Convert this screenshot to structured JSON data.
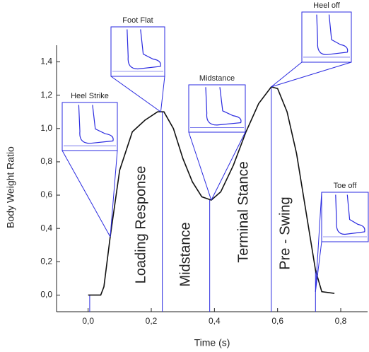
{
  "chart_data": {
    "type": "line",
    "x_label": "Time (s)",
    "y_label": "Body Weight Ratio",
    "xlim": [
      -0.1,
      0.885
    ],
    "ylim": [
      -0.1,
      1.5
    ],
    "xticks": [
      {
        "value": 0,
        "label": "0,0"
      },
      {
        "value": 0.2,
        "label": "0,2"
      },
      {
        "value": 0.4,
        "label": "0,4"
      },
      {
        "value": 0.6,
        "label": "0,6"
      },
      {
        "value": 0.8,
        "label": "0,8"
      }
    ],
    "yticks": [
      {
        "value": 0,
        "label": "0,0"
      },
      {
        "value": 0.2,
        "label": "0,2"
      },
      {
        "value": 0.4,
        "label": "0,4"
      },
      {
        "value": 0.6,
        "label": "0,6"
      },
      {
        "value": 0.8,
        "label": "0,8"
      },
      {
        "value": 1.0,
        "label": "1,0"
      },
      {
        "value": 1.2,
        "label": "1,2"
      },
      {
        "value": 1.4,
        "label": "1,4"
      }
    ],
    "x": [
      0.0,
      0.04,
      0.05,
      0.07,
      0.1,
      0.14,
      0.18,
      0.22,
      0.24,
      0.27,
      0.3,
      0.33,
      0.36,
      0.39,
      0.42,
      0.46,
      0.5,
      0.54,
      0.58,
      0.6,
      0.63,
      0.66,
      0.69,
      0.72,
      0.74,
      0.78
    ],
    "series": [
      {
        "color": "#111111",
        "values": [
          0.0,
          0.0,
          0.05,
          0.35,
          0.75,
          0.98,
          1.05,
          1.1,
          1.1,
          1.0,
          0.82,
          0.68,
          0.59,
          0.57,
          0.62,
          0.78,
          0.98,
          1.15,
          1.25,
          1.24,
          1.1,
          0.85,
          0.5,
          0.15,
          0.02,
          0.01
        ]
      }
    ],
    "phase_boundaries": [
      0.005,
      0.235,
      0.385,
      0.58,
      0.72
    ],
    "phases": [
      "Loading Response",
      "Midstance",
      "Terminal Stance",
      "Pre - Swing"
    ],
    "annotations": [
      {
        "text": "Heel Strike",
        "x": 0.07,
        "y": 0.35
      },
      {
        "text": "Foot Flat",
        "x": 0.23,
        "y": 1.1
      },
      {
        "text": "Midstance",
        "x": 0.39,
        "y": 0.57
      },
      {
        "text": "Heel off",
        "x": 0.58,
        "y": 1.25
      },
      {
        "text": "Toe off",
        "x": 0.72,
        "y": 0.02
      }
    ],
    "accent_color": "#2a2ae0"
  }
}
